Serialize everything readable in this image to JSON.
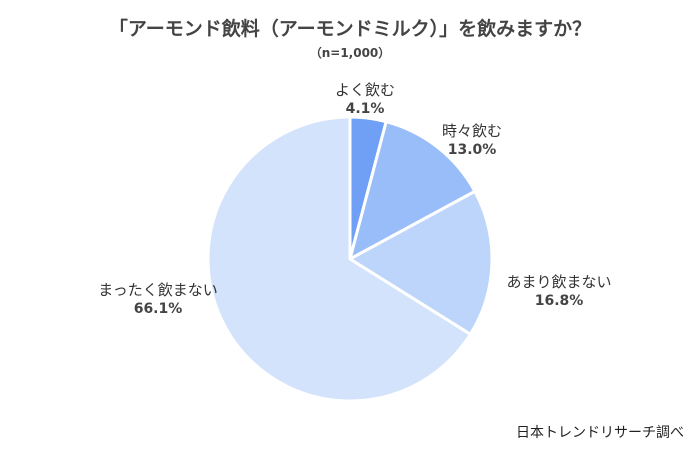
{
  "chart_data": {
    "type": "pie",
    "title": "「アーモンド飲料（アーモンドミルク）」を飲みますか？",
    "subtitle": "（n=1,000）",
    "slices": [
      {
        "label": "よく飲む",
        "value": 4.1,
        "value_label": "4.1%",
        "color": "#6fa0f5"
      },
      {
        "label": "時々飲む",
        "value": 13.0,
        "value_label": "13.0%",
        "color": "#98bdf8"
      },
      {
        "label": "あまり飲まない",
        "value": 16.8,
        "value_label": "16.8%",
        "color": "#bdd5fb"
      },
      {
        "label": "まったく飲まない",
        "value": 66.1,
        "value_label": "66.1%",
        "color": "#d3e3fc"
      }
    ],
    "start": "12 o'clock",
    "direction": "clockwise",
    "slice_border_color": "#ffffff"
  },
  "footer": {
    "source": "日本トレンドリサーチ調べ"
  }
}
